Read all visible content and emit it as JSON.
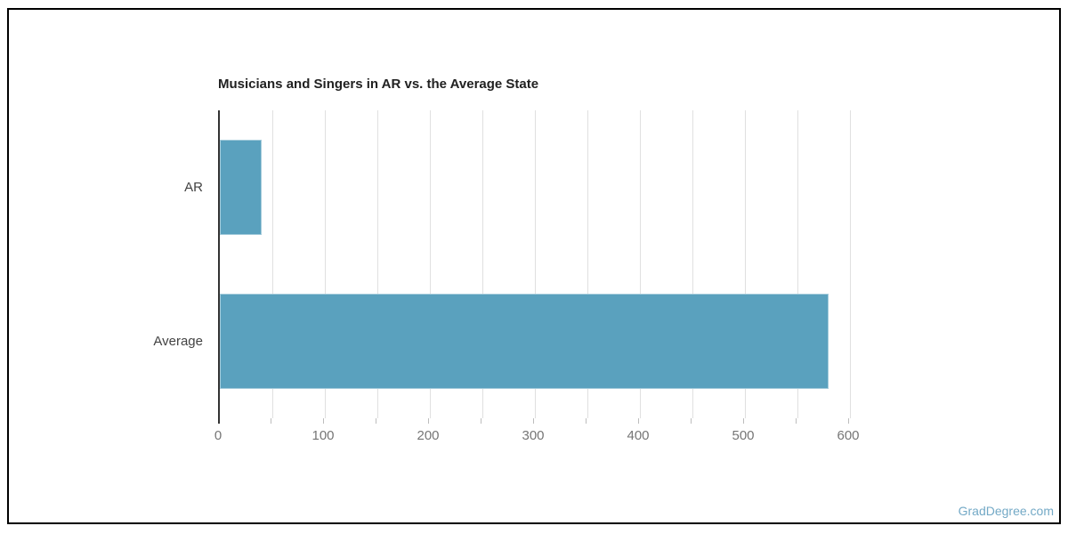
{
  "chart_data": {
    "type": "bar",
    "orientation": "horizontal",
    "title": "Musicians and Singers in AR vs. the Average State",
    "categories": [
      "AR",
      "Average"
    ],
    "values": [
      40,
      580
    ],
    "xlabel": "",
    "ylabel": "",
    "axis": {
      "min": 0,
      "max": 600,
      "label_step": 100,
      "grid_step": 50
    },
    "grid": true,
    "legend": false,
    "bar_color": "#5aa1be"
  },
  "watermark": {
    "text": "GradDegree.com",
    "color": "#73a9c6"
  },
  "colors": {
    "background": "#ffffff",
    "frame_border": "#000000",
    "axis_line": "#333333",
    "gridline": "#e0e0e0",
    "tick": "#bdbdbd",
    "title_text": "#212121",
    "x_label_text": "#757575",
    "y_label_text": "#424242"
  }
}
